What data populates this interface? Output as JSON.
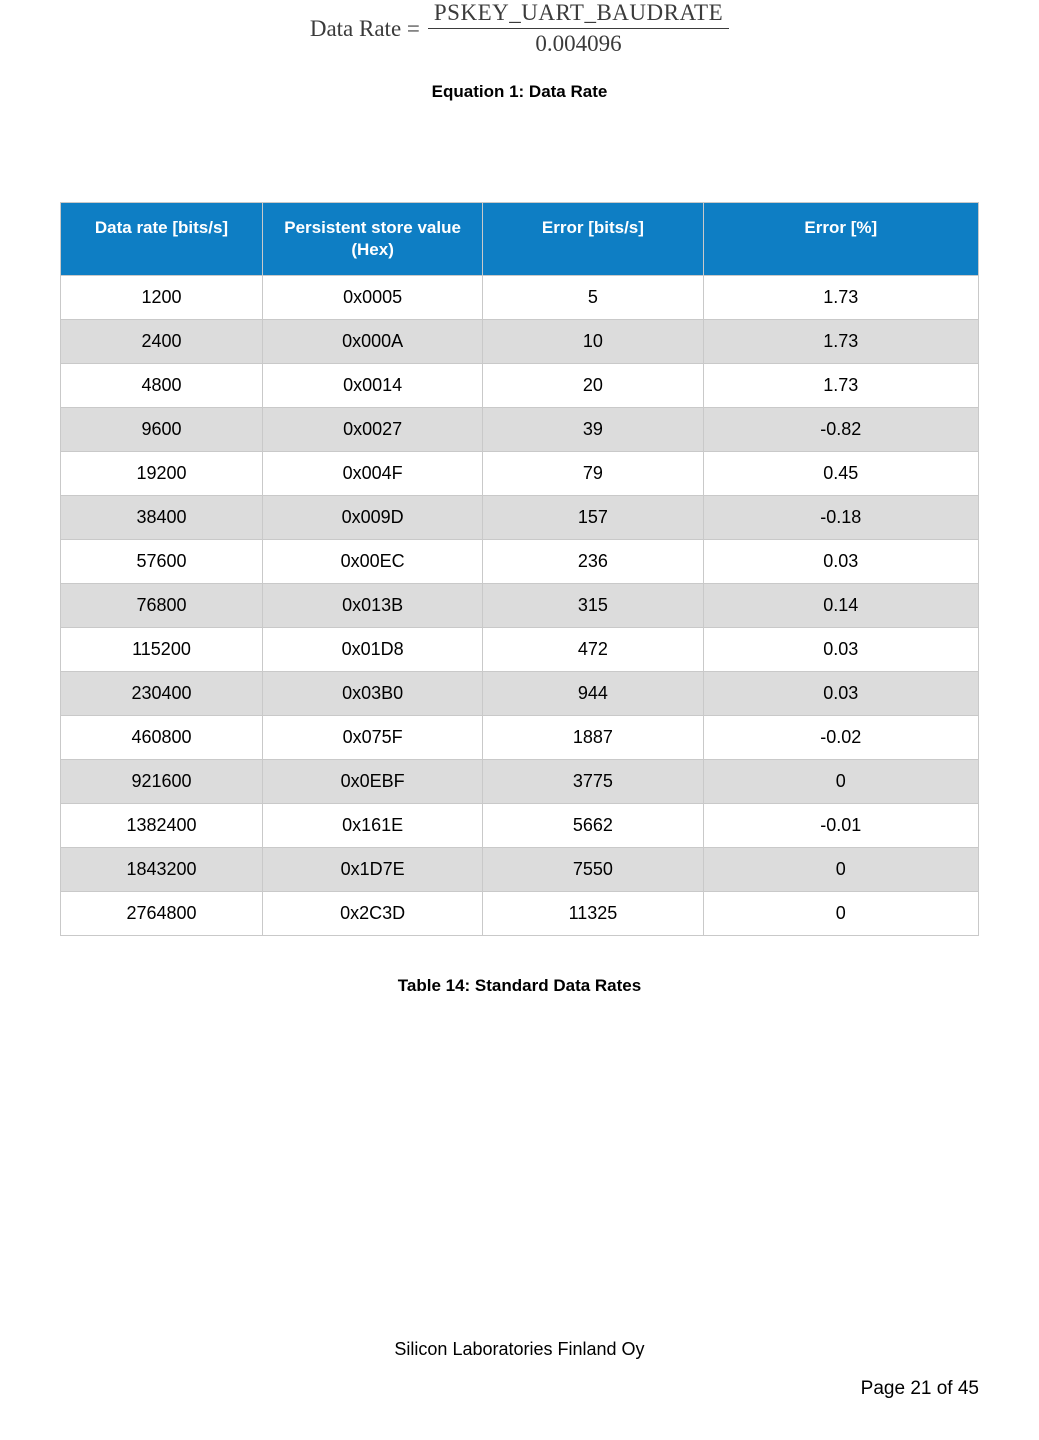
{
  "equation": {
    "lhs": "Data Rate =",
    "numerator": "PSKEY_UART_BAUDRATE",
    "denominator": "0.004096",
    "caption": "Equation 1: Data Rate"
  },
  "table": {
    "header_bg": "#0e7ec4",
    "header_fg": "#ffffff",
    "row_alt_bg": "#dcdcdc",
    "border_color": "#c9c9c9",
    "columns": [
      "Data rate [bits/s]",
      "Persistent store value (Hex)",
      "Error [bits/s]",
      "Error [%]"
    ],
    "rows": [
      [
        "1200",
        "0x0005",
        "5",
        "1.73"
      ],
      [
        "2400",
        "0x000A",
        "10",
        "1.73"
      ],
      [
        "4800",
        "0x0014",
        "20",
        "1.73"
      ],
      [
        "9600",
        "0x0027",
        "39",
        "-0.82"
      ],
      [
        "19200",
        "0x004F",
        "79",
        "0.45"
      ],
      [
        "38400",
        "0x009D",
        "157",
        "-0.18"
      ],
      [
        "57600",
        "0x00EC",
        "236",
        "0.03"
      ],
      [
        "76800",
        "0x013B",
        "315",
        "0.14"
      ],
      [
        "115200",
        "0x01D8",
        "472",
        "0.03"
      ],
      [
        "230400",
        "0x03B0",
        "944",
        "0.03"
      ],
      [
        "460800",
        "0x075F",
        "1887",
        "-0.02"
      ],
      [
        "921600",
        "0x0EBF",
        "3775",
        "0"
      ],
      [
        "1382400",
        "0x161E",
        "5662",
        "-0.01"
      ],
      [
        "1843200",
        "0x1D7E",
        "7550",
        "0"
      ],
      [
        "2764800",
        "0x2C3D",
        "11325",
        "0"
      ]
    ],
    "caption": "Table 14: Standard Data Rates"
  },
  "footer": {
    "company": "Silicon Laboratories Finland Oy",
    "page": "Page 21 of 45"
  }
}
